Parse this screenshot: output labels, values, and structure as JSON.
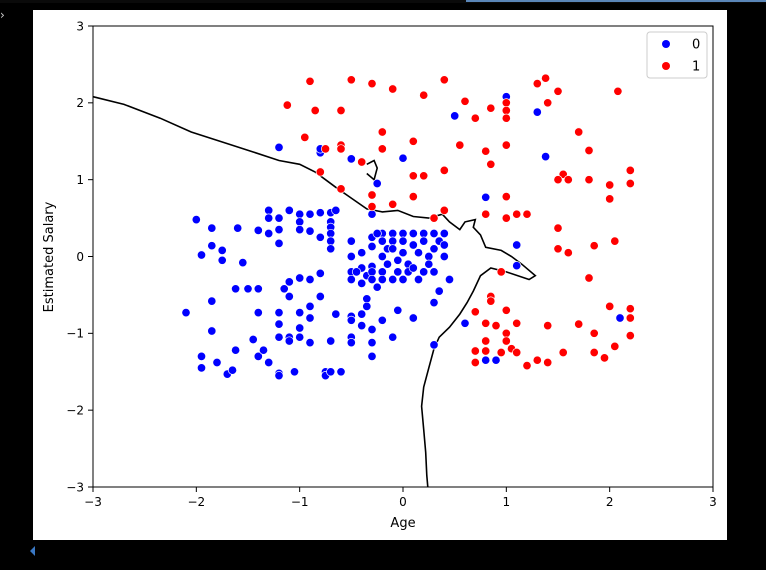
{
  "chart_data": {
    "type": "scatter",
    "title": "",
    "xlabel": "Age",
    "ylabel": "Estimated Salary",
    "xlim": [
      -3,
      3
    ],
    "ylim": [
      -3,
      3
    ],
    "xticks": [
      -3,
      -2,
      -1,
      0,
      1,
      2,
      3
    ],
    "yticks": [
      -3,
      -2,
      -1,
      0,
      1,
      2,
      3
    ],
    "xtick_labels": [
      "−3",
      "−2",
      "−1",
      "0",
      "1",
      "2",
      "3"
    ],
    "ytick_labels": [
      "−3",
      "−2",
      "−1",
      "0",
      "1",
      "2",
      "3"
    ],
    "grid": false,
    "legend_position": "top-right",
    "series": [
      {
        "name": "0",
        "color": "#0000ff",
        "points": [
          [
            -2.0,
            0.48
          ],
          [
            -1.95,
            0.02
          ],
          [
            -1.85,
            0.37
          ],
          [
            -1.85,
            0.14
          ],
          [
            -1.75,
            0.08
          ],
          [
            -1.75,
            -0.05
          ],
          [
            -1.6,
            0.37
          ],
          [
            -1.55,
            -0.08
          ],
          [
            -1.4,
            0.34
          ],
          [
            -1.3,
            0.6
          ],
          [
            -1.3,
            0.5
          ],
          [
            -1.3,
            0.3
          ],
          [
            -1.2,
            0.5
          ],
          [
            -1.2,
            0.35
          ],
          [
            -1.2,
            0.17
          ],
          [
            -1.1,
            0.6
          ],
          [
            -1.0,
            0.55
          ],
          [
            -1.0,
            0.45
          ],
          [
            -1.0,
            0.35
          ],
          [
            -0.9,
            0.55
          ],
          [
            -0.9,
            0.33
          ],
          [
            -0.8,
            0.57
          ],
          [
            -0.8,
            0.25
          ],
          [
            -0.7,
            0.57
          ],
          [
            -0.7,
            0.45
          ],
          [
            -0.7,
            0.38
          ],
          [
            -0.7,
            0.3
          ],
          [
            -0.7,
            0.2
          ],
          [
            -0.7,
            0.1
          ],
          [
            -0.3,
            0.55
          ],
          [
            -0.2,
            0.3
          ],
          [
            -0.1,
            0.3
          ],
          [
            0.0,
            0.3
          ],
          [
            0.1,
            0.3
          ],
          [
            0.2,
            0.3
          ],
          [
            0.3,
            0.3
          ],
          [
            0.4,
            0.3
          ],
          [
            -2.1,
            -0.73
          ],
          [
            -1.95,
            -1.3
          ],
          [
            -1.95,
            -1.45
          ],
          [
            -1.85,
            -0.58
          ],
          [
            -1.85,
            -0.97
          ],
          [
            -1.8,
            -1.38
          ],
          [
            -1.7,
            -1.53
          ],
          [
            -1.65,
            -1.48
          ],
          [
            -1.62,
            -1.22
          ],
          [
            -1.62,
            -0.42
          ],
          [
            -1.5,
            -0.42
          ],
          [
            -1.45,
            -1.08
          ],
          [
            -1.4,
            -0.42
          ],
          [
            -1.4,
            -0.73
          ],
          [
            -1.4,
            -1.3
          ],
          [
            -1.35,
            -1.22
          ],
          [
            -1.3,
            -1.38
          ],
          [
            -1.2,
            -1.52
          ],
          [
            -1.2,
            -1.55
          ],
          [
            -1.2,
            -0.88
          ],
          [
            -1.2,
            -0.73
          ],
          [
            -1.2,
            -1.05
          ],
          [
            -1.15,
            -0.42
          ],
          [
            -1.1,
            -0.52
          ],
          [
            -1.1,
            -0.33
          ],
          [
            -1.1,
            -1.05
          ],
          [
            -1.1,
            -1.1
          ],
          [
            -1.05,
            -1.5
          ],
          [
            -1.0,
            -0.28
          ],
          [
            -1.0,
            -0.73
          ],
          [
            -1.0,
            -0.93
          ],
          [
            -1.0,
            -1.05
          ],
          [
            -0.9,
            -0.3
          ],
          [
            -0.9,
            -0.65
          ],
          [
            -0.9,
            -0.8
          ],
          [
            -0.9,
            -1.12
          ],
          [
            -0.8,
            -0.22
          ],
          [
            -0.8,
            -0.52
          ],
          [
            -0.75,
            -1.5
          ],
          [
            -0.75,
            -1.55
          ],
          [
            -0.7,
            -1.1
          ],
          [
            -0.7,
            -1.5
          ],
          [
            -0.65,
            -0.75
          ],
          [
            -0.6,
            -1.5
          ],
          [
            -0.5,
            -0.2
          ],
          [
            -0.5,
            -0.78
          ],
          [
            -0.5,
            -0.83
          ],
          [
            -0.5,
            -1.05
          ],
          [
            -0.5,
            -1.12
          ],
          [
            -0.4,
            -0.75
          ],
          [
            -0.4,
            -0.9
          ],
          [
            -0.4,
            -0.15
          ],
          [
            -0.35,
            -0.55
          ],
          [
            -0.35,
            -0.65
          ],
          [
            -0.3,
            -0.95
          ],
          [
            -0.3,
            -1.12
          ],
          [
            -0.3,
            -1.3
          ],
          [
            -0.2,
            -0.83
          ],
          [
            -0.1,
            -1.05
          ],
          [
            -0.05,
            -0.7
          ],
          [
            0.1,
            -0.8
          ],
          [
            0.3,
            -1.15
          ],
          [
            0.3,
            -0.6
          ],
          [
            0.35,
            -0.45
          ],
          [
            0.45,
            -0.3
          ],
          [
            -0.5,
            0.2
          ],
          [
            -0.5,
            0.0
          ],
          [
            -0.4,
            0.05
          ],
          [
            -0.3,
            0.25
          ],
          [
            -0.3,
            0.13
          ],
          [
            -0.3,
            -0.13
          ],
          [
            -0.25,
            0.3
          ],
          [
            -0.2,
            0.2
          ],
          [
            -0.2,
            0.0
          ],
          [
            -0.15,
            0.1
          ],
          [
            -0.1,
            0.2
          ],
          [
            -0.1,
            0.1
          ],
          [
            -0.05,
            -0.05
          ],
          [
            0.0,
            0.2
          ],
          [
            0.0,
            0.05
          ],
          [
            0.05,
            -0.1
          ],
          [
            0.1,
            0.15
          ],
          [
            0.15,
            0.05
          ],
          [
            0.2,
            0.2
          ],
          [
            0.25,
            0.0
          ],
          [
            0.3,
            0.1
          ],
          [
            0.35,
            0.2
          ],
          [
            0.4,
            0.15
          ],
          [
            0.4,
            0.0
          ],
          [
            -0.5,
            -0.3
          ],
          [
            -0.45,
            -0.2
          ],
          [
            -0.4,
            -0.35
          ],
          [
            -0.35,
            -0.25
          ],
          [
            -0.3,
            -0.2
          ],
          [
            -0.3,
            -0.3
          ],
          [
            -0.25,
            -0.4
          ],
          [
            -0.2,
            -0.2
          ],
          [
            -0.2,
            -0.3
          ],
          [
            -0.15,
            -0.1
          ],
          [
            -0.1,
            -0.3
          ],
          [
            -0.05,
            -0.2
          ],
          [
            0.0,
            -0.3
          ],
          [
            0.05,
            -0.2
          ],
          [
            0.1,
            -0.15
          ],
          [
            0.15,
            -0.3
          ],
          [
            0.2,
            -0.2
          ],
          [
            0.25,
            -0.1
          ],
          [
            0.3,
            -0.2
          ],
          [
            -0.25,
            0.95
          ],
          [
            -0.5,
            1.27
          ],
          [
            -0.8,
            1.35
          ],
          [
            -0.8,
            1.4
          ],
          [
            -1.2,
            1.42
          ],
          [
            -0.65,
            0.6
          ],
          [
            0.0,
            1.28
          ],
          [
            0.5,
            1.83
          ],
          [
            1.0,
            2.08
          ],
          [
            1.3,
            1.88
          ],
          [
            1.38,
            1.3
          ],
          [
            0.8,
            0.77
          ],
          [
            1.1,
            0.15
          ],
          [
            1.1,
            -0.12
          ],
          [
            0.6,
            -0.87
          ],
          [
            0.9,
            -1.35
          ],
          [
            0.8,
            -1.35
          ],
          [
            2.1,
            -0.8
          ]
        ]
      },
      {
        "name": "1",
        "color": "#ff0000",
        "points": [
          [
            -1.12,
            1.97
          ],
          [
            -0.9,
            2.28
          ],
          [
            -0.85,
            1.9
          ],
          [
            -0.6,
            1.9
          ],
          [
            -0.5,
            2.3
          ],
          [
            -0.3,
            2.25
          ],
          [
            -0.1,
            2.18
          ],
          [
            0.2,
            2.1
          ],
          [
            0.4,
            2.3
          ],
          [
            0.6,
            2.02
          ],
          [
            0.7,
            1.8
          ],
          [
            0.85,
            1.93
          ],
          [
            1.0,
            2.0
          ],
          [
            1.0,
            1.9
          ],
          [
            1.0,
            1.8
          ],
          [
            1.3,
            2.25
          ],
          [
            1.38,
            2.32
          ],
          [
            1.4,
            2.0
          ],
          [
            1.5,
            2.15
          ],
          [
            2.08,
            2.15
          ],
          [
            1.7,
            1.62
          ],
          [
            1.8,
            1.38
          ],
          [
            1.55,
            1.07
          ],
          [
            1.5,
            1.0
          ],
          [
            1.6,
            1.0
          ],
          [
            1.8,
            1.0
          ],
          [
            2.0,
            0.93
          ],
          [
            2.0,
            0.75
          ],
          [
            2.2,
            1.12
          ],
          [
            2.2,
            0.95
          ],
          [
            -0.95,
            1.55
          ],
          [
            -0.75,
            1.4
          ],
          [
            -0.6,
            1.45
          ],
          [
            -0.6,
            1.4
          ],
          [
            -0.4,
            1.23
          ],
          [
            -0.2,
            1.62
          ],
          [
            -0.2,
            1.4
          ],
          [
            0.1,
            1.5
          ],
          [
            0.1,
            1.05
          ],
          [
            0.2,
            1.05
          ],
          [
            0.4,
            1.12
          ],
          [
            0.55,
            1.45
          ],
          [
            0.8,
            1.37
          ],
          [
            0.85,
            1.2
          ],
          [
            1.0,
            1.45
          ],
          [
            -0.8,
            1.1
          ],
          [
            -0.6,
            0.88
          ],
          [
            -0.3,
            0.8
          ],
          [
            -0.3,
            0.65
          ],
          [
            -0.1,
            0.68
          ],
          [
            0.1,
            0.78
          ],
          [
            0.3,
            0.5
          ],
          [
            0.4,
            0.6
          ],
          [
            0.8,
            0.55
          ],
          [
            1.0,
            0.5
          ],
          [
            1.0,
            0.78
          ],
          [
            1.1,
            0.55
          ],
          [
            1.2,
            0.55
          ],
          [
            1.5,
            0.37
          ],
          [
            1.5,
            0.1
          ],
          [
            1.6,
            0.05
          ],
          [
            1.85,
            0.14
          ],
          [
            2.05,
            0.2
          ],
          [
            1.8,
            -0.28
          ],
          [
            0.95,
            -0.2
          ],
          [
            0.85,
            -0.52
          ],
          [
            0.85,
            -0.58
          ],
          [
            0.7,
            -0.72
          ],
          [
            0.8,
            -0.87
          ],
          [
            0.9,
            -0.9
          ],
          [
            1.0,
            -0.7
          ],
          [
            1.0,
            -1.0
          ],
          [
            1.1,
            -0.87
          ],
          [
            1.0,
            -1.1
          ],
          [
            1.05,
            -1.2
          ],
          [
            0.8,
            -1.1
          ],
          [
            0.8,
            -1.23
          ],
          [
            0.95,
            -1.25
          ],
          [
            1.1,
            -1.25
          ],
          [
            0.7,
            -1.23
          ],
          [
            0.7,
            -1.38
          ],
          [
            1.2,
            -1.42
          ],
          [
            1.3,
            -1.35
          ],
          [
            1.4,
            -1.38
          ],
          [
            1.4,
            -0.9
          ],
          [
            1.55,
            -1.25
          ],
          [
            1.7,
            -0.88
          ],
          [
            1.85,
            -1.0
          ],
          [
            1.85,
            -1.25
          ],
          [
            1.95,
            -1.32
          ],
          [
            2.0,
            -0.65
          ],
          [
            2.05,
            -1.17
          ],
          [
            2.2,
            -0.68
          ],
          [
            2.2,
            -0.8
          ],
          [
            2.2,
            -1.03
          ]
        ]
      }
    ],
    "decision_boundary": [
      [
        [
          -3.0,
          2.08
        ],
        [
          -2.7,
          1.98
        ],
        [
          -2.35,
          1.8
        ],
        [
          -2.05,
          1.62
        ],
        [
          -1.7,
          1.47
        ],
        [
          -1.45,
          1.36
        ],
        [
          -1.2,
          1.25
        ],
        [
          -1.0,
          1.2
        ],
        [
          -0.85,
          1.1
        ],
        [
          -0.75,
          1.0
        ],
        [
          -0.65,
          0.9
        ],
        [
          -0.5,
          0.76
        ],
        [
          -0.35,
          0.62
        ],
        [
          -0.2,
          0.58
        ],
        [
          -0.05,
          0.6
        ],
        [
          0.1,
          0.52
        ],
        [
          0.25,
          0.5
        ],
        [
          0.38,
          0.55
        ],
        [
          0.45,
          0.45
        ],
        [
          0.55,
          0.35
        ],
        [
          0.6,
          0.45
        ],
        [
          0.7,
          0.48
        ],
        [
          0.68,
          0.38
        ],
        [
          0.75,
          0.28
        ],
        [
          0.8,
          0.12
        ],
        [
          0.95,
          0.08
        ],
        [
          1.05,
          0.0
        ],
        [
          1.15,
          -0.1
        ],
        [
          1.28,
          -0.25
        ],
        [
          1.22,
          -0.3
        ],
        [
          1.0,
          -0.2
        ],
        [
          0.85,
          -0.15
        ],
        [
          0.75,
          -0.25
        ],
        [
          0.68,
          -0.45
        ],
        [
          0.62,
          -0.6
        ],
        [
          0.55,
          -0.75
        ],
        [
          0.45,
          -0.92
        ],
        [
          0.35,
          -1.05
        ],
        [
          0.3,
          -1.2
        ],
        [
          0.25,
          -1.45
        ],
        [
          0.2,
          -1.7
        ],
        [
          0.18,
          -1.95
        ],
        [
          0.2,
          -2.25
        ],
        [
          0.22,
          -2.55
        ],
        [
          0.23,
          -2.85
        ],
        [
          0.24,
          -3.0
        ]
      ],
      [
        [
          -0.35,
          1.2
        ],
        [
          -0.28,
          1.25
        ],
        [
          -0.25,
          1.15
        ],
        [
          -0.28,
          1.0
        ],
        [
          -0.35,
          1.08
        ]
      ]
    ]
  },
  "legend": {
    "title": "",
    "entries": [
      {
        "label": "0",
        "color": "#0000ff"
      },
      {
        "label": "1",
        "color": "#ff0000"
      }
    ]
  }
}
